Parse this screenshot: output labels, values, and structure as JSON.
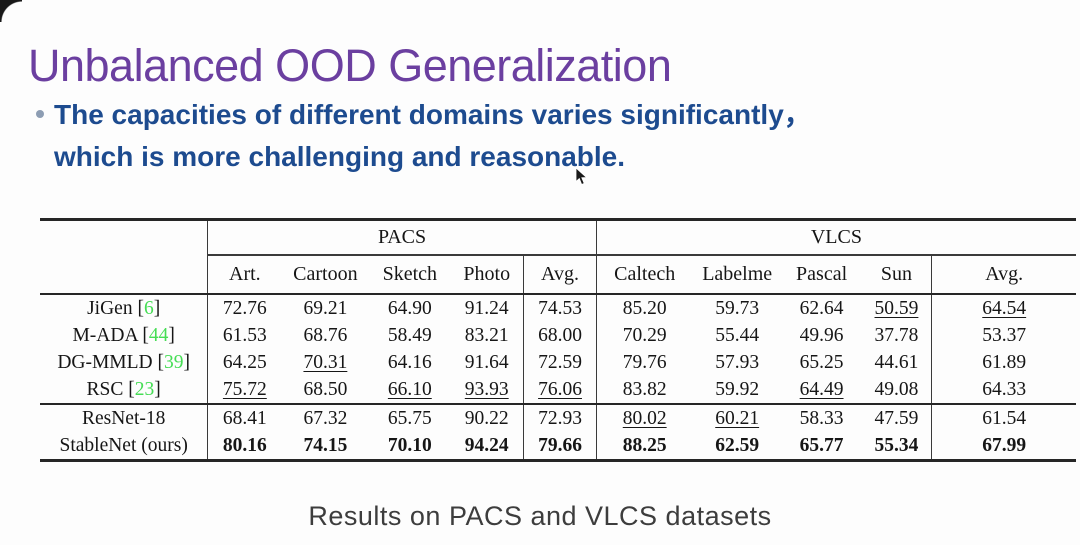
{
  "slide": {
    "title": "Unbalanced OOD Generalization",
    "bullet_line1": "The capacities of different domains varies significantly，",
    "bullet_line2": "which is more challenging and reasonable.",
    "caption": "Results on PACS and VLCS datasets"
  },
  "colors": {
    "title": "#6b3fa0",
    "bullet": "#1d4b8f",
    "citation_green": "#46dd55",
    "caption": "#3d3d3d"
  },
  "table": {
    "groups": [
      {
        "label": "PACS",
        "span": 5
      },
      {
        "label": "VLCS",
        "span": 5
      }
    ],
    "columns": [
      "Art.",
      "Cartoon",
      "Sketch",
      "Photo",
      "Avg.",
      "Caltech",
      "Labelme",
      "Pascal",
      "Sun",
      "Avg."
    ],
    "col_widths_pct": [
      16.2,
      7.1,
      8.5,
      7.8,
      7.1,
      7.0,
      9.3,
      8.6,
      7.7,
      6.8,
      13.9
    ],
    "vsep_columns": [
      0,
      4,
      5,
      9
    ],
    "rows": [
      {
        "method": "JiGen",
        "cite": "6",
        "bold": false,
        "rule_below": false,
        "cells": [
          {
            "t": "72.76"
          },
          {
            "t": "69.21"
          },
          {
            "t": "64.90"
          },
          {
            "t": "91.24"
          },
          {
            "t": "74.53"
          },
          {
            "t": "85.20"
          },
          {
            "t": "59.73"
          },
          {
            "t": "62.64"
          },
          {
            "t": "50.59",
            "u": true
          },
          {
            "t": "64.54",
            "u": true
          }
        ]
      },
      {
        "method": "M-ADA",
        "cite": "44",
        "bold": false,
        "rule_below": false,
        "cells": [
          {
            "t": "61.53"
          },
          {
            "t": "68.76"
          },
          {
            "t": "58.49"
          },
          {
            "t": "83.21"
          },
          {
            "t": "68.00"
          },
          {
            "t": "70.29"
          },
          {
            "t": "55.44"
          },
          {
            "t": "49.96"
          },
          {
            "t": "37.78"
          },
          {
            "t": "53.37"
          }
        ]
      },
      {
        "method": "DG-MMLD",
        "cite": "39",
        "bold": false,
        "rule_below": false,
        "cells": [
          {
            "t": "64.25"
          },
          {
            "t": "70.31",
            "u": true
          },
          {
            "t": "64.16"
          },
          {
            "t": "91.64"
          },
          {
            "t": "72.59"
          },
          {
            "t": "79.76"
          },
          {
            "t": "57.93"
          },
          {
            "t": "65.25"
          },
          {
            "t": "44.61"
          },
          {
            "t": "61.89"
          }
        ]
      },
      {
        "method": "RSC",
        "cite": "23",
        "bold": false,
        "rule_below": true,
        "cells": [
          {
            "t": "75.72",
            "u": true
          },
          {
            "t": "68.50"
          },
          {
            "t": "66.10",
            "u": true
          },
          {
            "t": "93.93",
            "u": true
          },
          {
            "t": "76.06",
            "u": true
          },
          {
            "t": "83.82"
          },
          {
            "t": "59.92"
          },
          {
            "t": "64.49",
            "u": true
          },
          {
            "t": "49.08"
          },
          {
            "t": "64.33"
          }
        ]
      },
      {
        "method": "ResNet-18",
        "cite": null,
        "bold": false,
        "rule_below": false,
        "cells": [
          {
            "t": "68.41"
          },
          {
            "t": "67.32"
          },
          {
            "t": "65.75"
          },
          {
            "t": "90.22"
          },
          {
            "t": "72.93"
          },
          {
            "t": "80.02",
            "u": true
          },
          {
            "t": "60.21",
            "u": true
          },
          {
            "t": "58.33"
          },
          {
            "t": "47.59"
          },
          {
            "t": "61.54"
          }
        ]
      },
      {
        "method": "StableNet (ours)",
        "cite": null,
        "bold": true,
        "rule_below": false,
        "cells": [
          {
            "t": "80.16"
          },
          {
            "t": "74.15"
          },
          {
            "t": "70.10"
          },
          {
            "t": "94.24"
          },
          {
            "t": "79.66"
          },
          {
            "t": "88.25"
          },
          {
            "t": "62.59"
          },
          {
            "t": "65.77"
          },
          {
            "t": "55.34"
          },
          {
            "t": "67.99"
          }
        ]
      }
    ]
  }
}
